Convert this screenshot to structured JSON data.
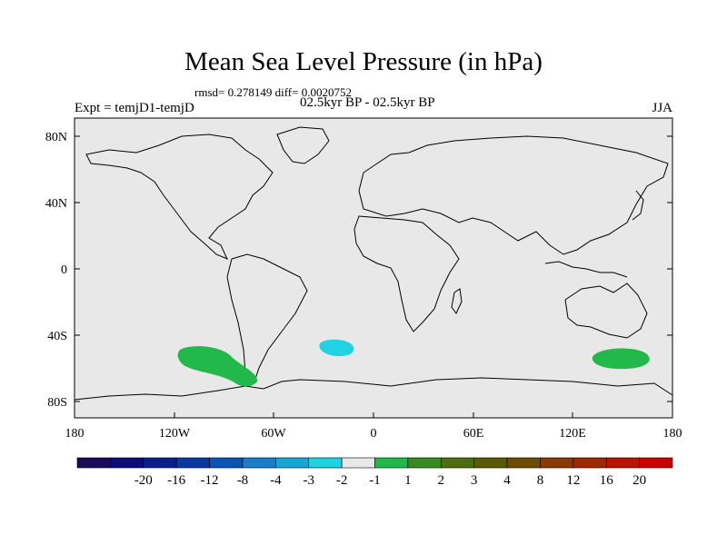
{
  "title": "Mean Sea Level Pressure (in hPa)",
  "stats": "rmsd= 0.278149 diff= 0.0020752",
  "experiment": "Expt = temjD1-temjD",
  "period": "02.5kyr BP - 02.5kyr BP",
  "season": "JJA",
  "map": {
    "background": "#e8e8e8",
    "lat_ticks": [
      "80N",
      "40N",
      "0",
      "40S",
      "80S"
    ],
    "lon_ticks": [
      "180",
      "120W",
      "60W",
      "0",
      "60E",
      "120E",
      "180"
    ]
  },
  "colorbar": {
    "colors": [
      "#1a0a5a",
      "#0c0c7a",
      "#0a1e8c",
      "#0a38a0",
      "#0855b4",
      "#1a7dc8",
      "#17a5d6",
      "#20d2e2",
      "#e8e8e8",
      "#22b84a",
      "#3a8a24",
      "#4d6e10",
      "#5a5a06",
      "#6e4c00",
      "#8a3a00",
      "#a02800",
      "#b81400",
      "#cc0000"
    ],
    "labels": [
      "-20",
      "-16",
      "-12",
      "-8",
      "-4",
      "-3",
      "-2",
      "-1",
      "1",
      "2",
      "3",
      "4",
      "8",
      "12",
      "16",
      "20"
    ]
  },
  "anomalies": [
    {
      "name": "south-pacific-positive",
      "color": "#22b84a"
    },
    {
      "name": "south-atlantic-negative",
      "color": "#20d2e2"
    },
    {
      "name": "south-of-australia-positive",
      "color": "#22b84a"
    }
  ]
}
